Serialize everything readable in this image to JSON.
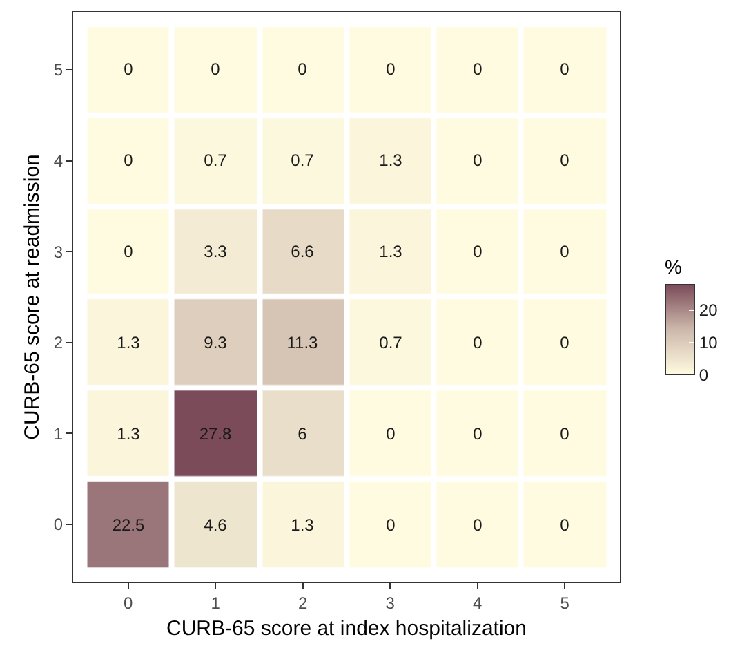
{
  "chart_data": {
    "type": "heatmap",
    "xlabel": "CURB-65 score at index hospitalization",
    "ylabel": "CURB-65 score at readmission",
    "clabel": "%",
    "categories": [
      "0",
      "1",
      "2",
      "3",
      "4",
      "5"
    ],
    "y_categories": [
      "5",
      "4",
      "3",
      "2",
      "1",
      "0"
    ],
    "cells": [
      [
        0,
        0,
        0,
        0,
        0,
        0
      ],
      [
        0,
        0.7,
        0.7,
        1.3,
        0,
        0
      ],
      [
        0,
        3.3,
        6.6,
        1.3,
        0,
        0
      ],
      [
        1.3,
        9.3,
        11.3,
        0.7,
        0,
        0
      ],
      [
        1.3,
        27.8,
        6,
        0,
        0,
        0
      ],
      [
        22.5,
        4.6,
        1.3,
        0,
        0,
        0
      ]
    ],
    "clim": [
      0,
      27.8
    ],
    "cticks": [
      0,
      10,
      20
    ],
    "data_labels": true
  }
}
